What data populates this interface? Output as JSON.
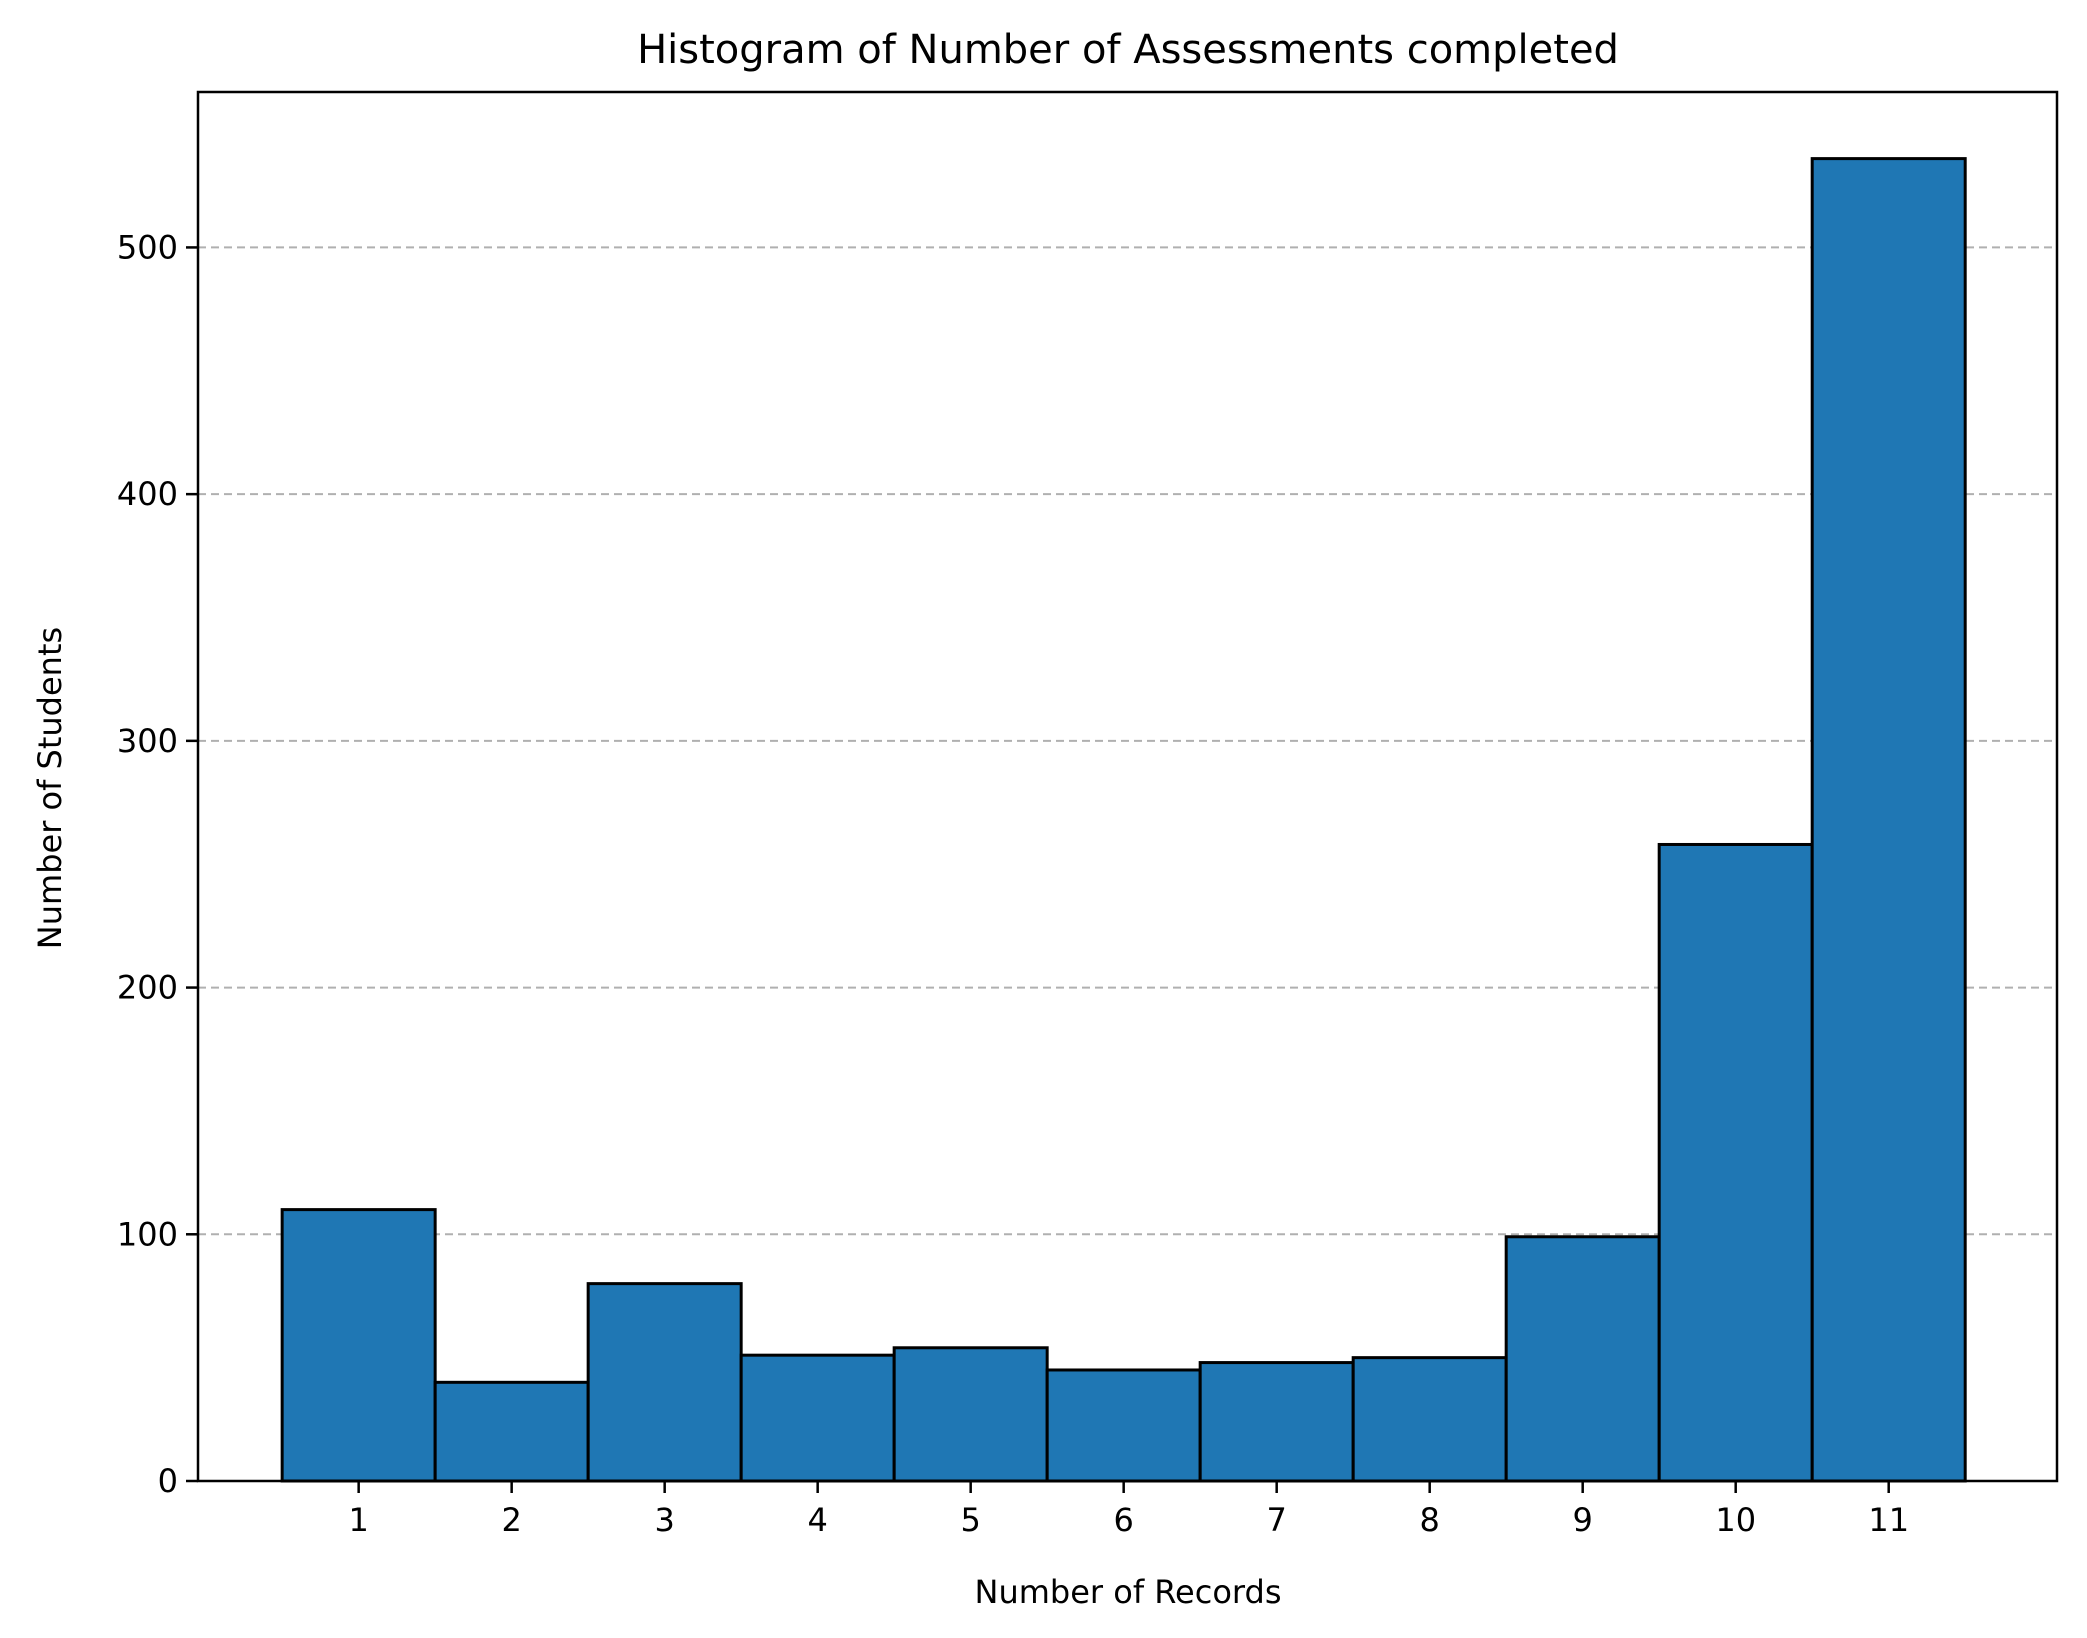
{
  "chart_data": {
    "type": "bar",
    "title": "Histogram of Number of Assessments completed",
    "xlabel": "Number of Records",
    "ylabel": "Number of Students",
    "categories": [
      "1",
      "2",
      "3",
      "4",
      "5",
      "6",
      "7",
      "8",
      "9",
      "10",
      "11"
    ],
    "values": [
      110,
      40,
      80,
      51,
      54,
      45,
      48,
      50,
      99,
      258,
      536
    ],
    "xlim": [
      -0.05,
      12.1
    ],
    "ylim": [
      0,
      563
    ],
    "yticks": [
      0,
      100,
      200,
      300,
      400,
      500
    ],
    "ytick_labels": [
      "0",
      "100",
      "200",
      "300",
      "400",
      "500"
    ],
    "grid": "y-dashed",
    "bar_color": "#1f77b4",
    "edge_color": "#000000",
    "grid_color": "#b0b0b0"
  }
}
